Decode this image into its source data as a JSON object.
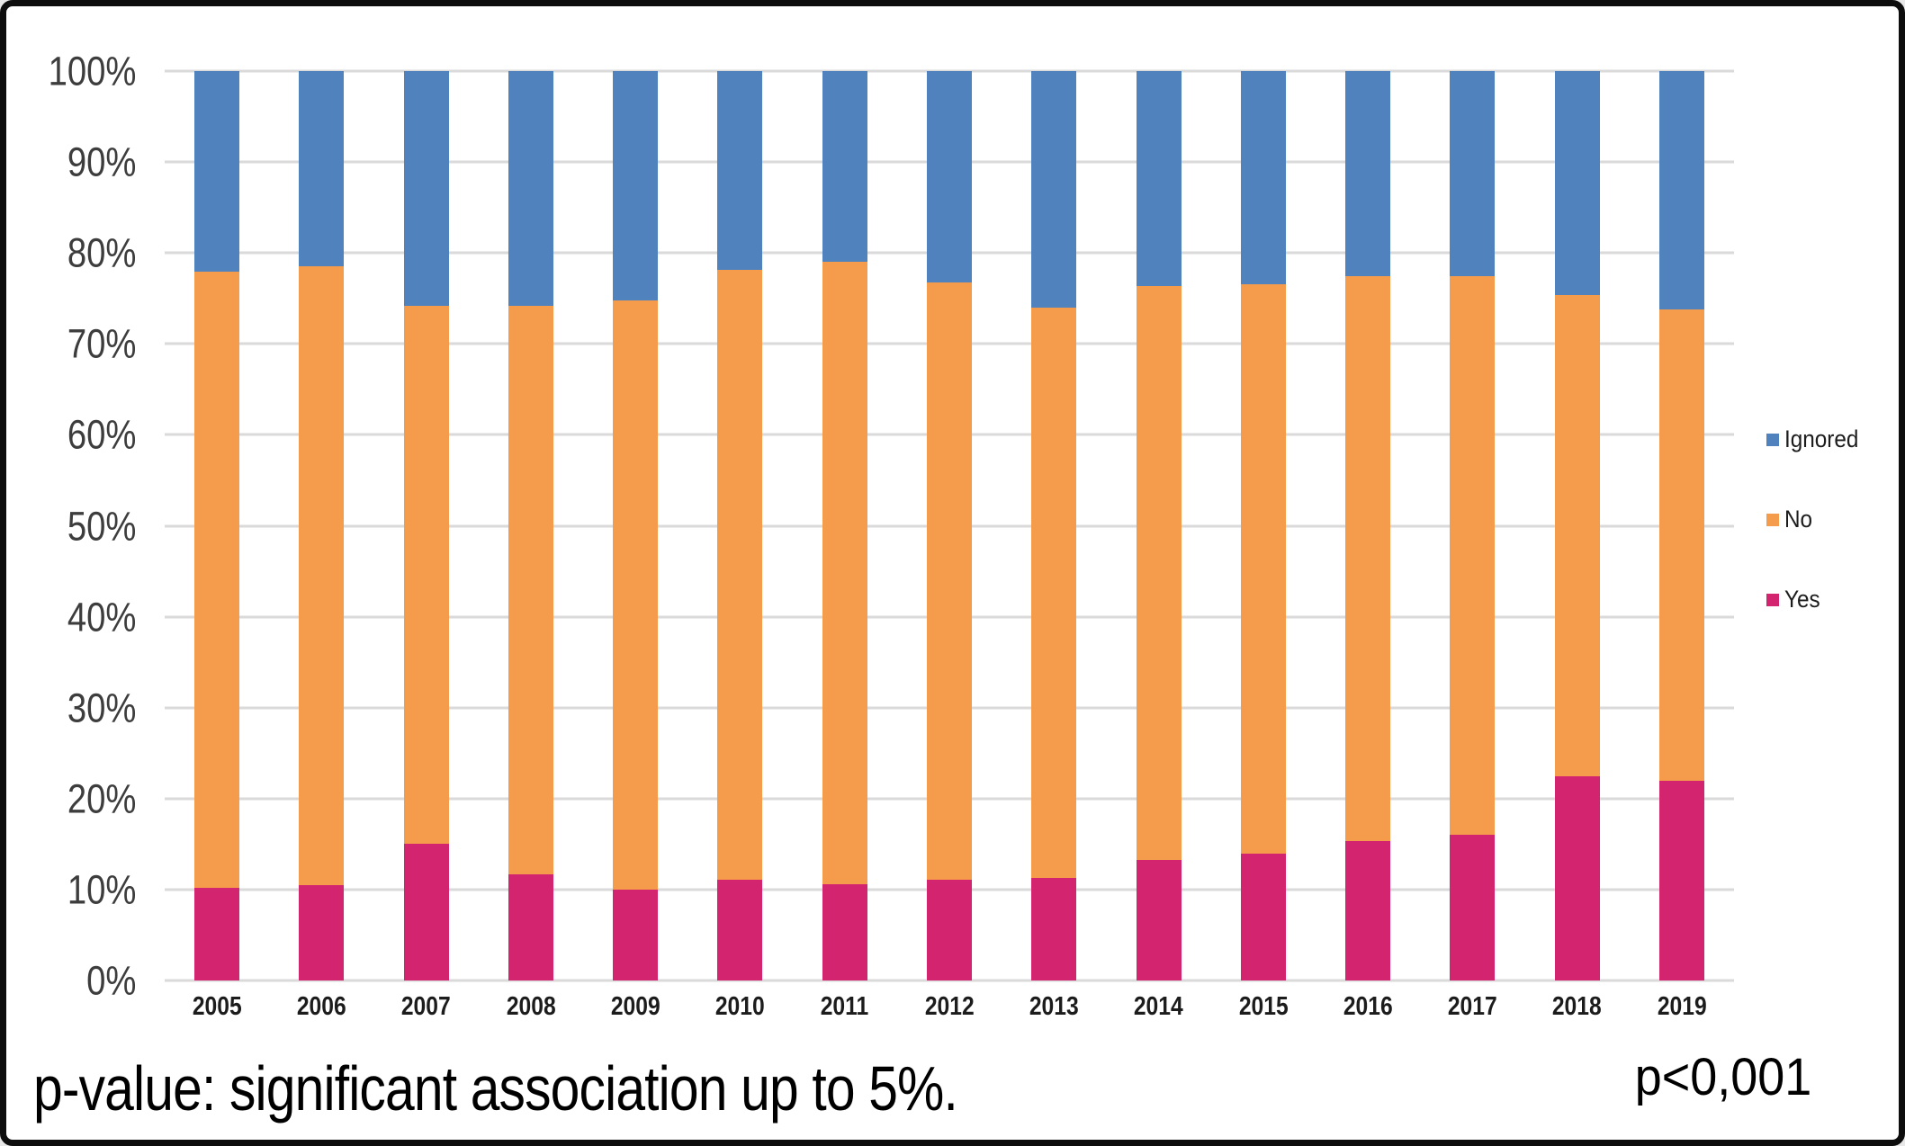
{
  "chart_data": {
    "type": "bar",
    "stacked": true,
    "normalized_100pct": true,
    "title": "",
    "categories": [
      "2005",
      "2006",
      "2007",
      "2008",
      "2009",
      "2010",
      "2011",
      "2012",
      "2013",
      "2014",
      "2015",
      "2016",
      "2017",
      "2018",
      "2019"
    ],
    "series": [
      {
        "name": "Yes",
        "color": "#D2246F",
        "values": [
          10.2,
          10.5,
          15.0,
          11.7,
          10.0,
          11.1,
          10.6,
          11.1,
          11.3,
          13.3,
          13.9,
          15.3,
          16.0,
          22.5,
          22.0
        ]
      },
      {
        "name": "No",
        "color": "#F59B4C",
        "values": [
          67.7,
          68.0,
          59.2,
          62.5,
          64.8,
          67.0,
          68.4,
          65.7,
          62.7,
          63.1,
          62.7,
          62.2,
          61.5,
          52.9,
          51.8
        ]
      },
      {
        "name": "Ignored",
        "color": "#5082BE",
        "values": [
          22.1,
          21.5,
          25.8,
          25.8,
          25.2,
          21.9,
          21.0,
          23.2,
          26.0,
          23.6,
          23.4,
          22.5,
          22.5,
          24.6,
          26.2
        ]
      }
    ],
    "y_axis": {
      "min": 0,
      "max": 100,
      "tick_step": 10,
      "tick_labels": [
        "0%",
        "10%",
        "20%",
        "30%",
        "40%",
        "50%",
        "60%",
        "70%",
        "80%",
        "90%",
        "100%"
      ],
      "grid": true
    },
    "legend": {
      "position": "right",
      "order_top_to_bottom": [
        "Ignored",
        "No",
        "Yes"
      ]
    }
  },
  "annotations": {
    "caption": "p-value: significant association up to 5%.",
    "p_value": "p<0,001"
  },
  "colors": {
    "background": "#FFFFFF",
    "frame_border": "#0D0D0D",
    "grid": "#DADADA",
    "axis_text": "#3D3D3D",
    "label_text": "#1C1C1C"
  }
}
